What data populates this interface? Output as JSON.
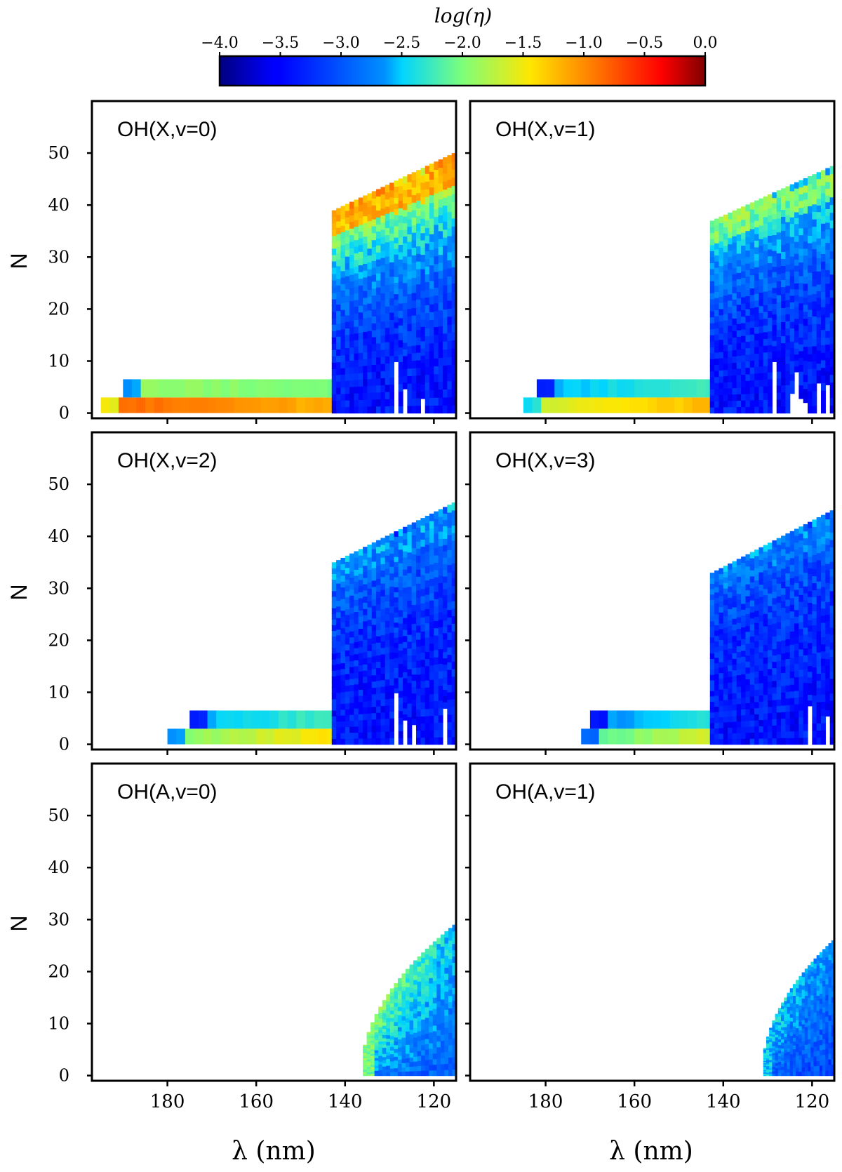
{
  "chart_data": {
    "type": "heatmap",
    "colorbar": {
      "label": "log(η)",
      "colormap": "jet",
      "range": [
        -4.0,
        0.0
      ],
      "ticks": [
        -4.0,
        -3.5,
        -3.0,
        -2.5,
        -2.0,
        -1.5,
        -1.0,
        -0.5,
        0.0
      ],
      "tick_labels": [
        "−4.0",
        "−3.5",
        "−3.0",
        "−2.5",
        "−2.0",
        "−1.5",
        "−1.0",
        "−0.5",
        "0.0"
      ]
    },
    "x_axis": {
      "label": "λ (nm)",
      "range": [
        197,
        115
      ],
      "ticks": [
        180,
        160,
        140,
        120
      ],
      "tick_labels": [
        "180",
        "160",
        "140",
        "120"
      ]
    },
    "y_axis": {
      "label": "N",
      "range": [
        -1,
        60
      ],
      "ticks": [
        0,
        10,
        20,
        30,
        40,
        50
      ],
      "tick_labels": [
        "0",
        "10",
        "20",
        "30",
        "40",
        "50"
      ]
    },
    "panels": [
      {
        "title": "OH(X,v=0)",
        "bands": [
          {
            "x_start": 195,
            "x_end": 143,
            "n_min": 0,
            "n_max": 3,
            "log_eta_start": -0.8,
            "log_eta_end": -1.2
          },
          {
            "x_start": 190,
            "x_end": 143,
            "n_min": 3,
            "n_max": 6.5,
            "log_eta_start": -1.9,
            "log_eta_end": -2.0
          }
        ],
        "region": {
          "x_start": 143,
          "x_end": 115,
          "edge_n_start": 39,
          "edge_n_end": 50,
          "peak_log_eta": -1.1,
          "base_log_eta": -3.4
        }
      },
      {
        "title": "OH(X,v=1)",
        "bands": [
          {
            "x_start": 185,
            "x_end": 143,
            "n_min": 0,
            "n_max": 3,
            "log_eta_start": -1.7,
            "log_eta_end": -1.2
          },
          {
            "x_start": 182,
            "x_end": 143,
            "n_min": 3,
            "n_max": 6.5,
            "log_eta_start": -2.6,
            "log_eta_end": -2.2
          }
        ],
        "region": {
          "x_start": 143,
          "x_end": 115,
          "edge_n_start": 37,
          "edge_n_end": 47.5,
          "peak_log_eta": -1.9,
          "base_log_eta": -3.4
        }
      },
      {
        "title": "OH(X,v=2)",
        "bands": [
          {
            "x_start": 180,
            "x_end": 143,
            "n_min": 0,
            "n_max": 3,
            "log_eta_start": -2.0,
            "log_eta_end": -1.4
          },
          {
            "x_start": 175,
            "x_end": 143,
            "n_min": 3,
            "n_max": 6.5,
            "log_eta_start": -2.6,
            "log_eta_end": -2.2
          }
        ],
        "region": {
          "x_start": 143,
          "x_end": 115,
          "edge_n_start": 35,
          "edge_n_end": 46.5,
          "peak_log_eta": -2.6,
          "base_log_eta": -3.4
        }
      },
      {
        "title": "OH(X,v=3)",
        "bands": [
          {
            "x_start": 172,
            "x_end": 143,
            "n_min": 0,
            "n_max": 3,
            "log_eta_start": -2.2,
            "log_eta_end": -1.6
          },
          {
            "x_start": 170,
            "x_end": 143,
            "n_min": 3,
            "n_max": 6.5,
            "log_eta_start": -2.7,
            "log_eta_end": -2.3
          }
        ],
        "region": {
          "x_start": 143,
          "x_end": 115,
          "edge_n_start": 33,
          "edge_n_end": 45,
          "peak_log_eta": -2.7,
          "base_log_eta": -3.4
        }
      },
      {
        "title": "OH(A,v=0)",
        "bands": [],
        "curve": {
          "x_zero": 136,
          "x_end": 115,
          "n_end": 29,
          "peak_log_eta": -1.8,
          "base_log_eta": -3.3
        }
      },
      {
        "title": "OH(A,v=1)",
        "bands": [],
        "curve": {
          "x_zero": 131,
          "x_end": 115,
          "n_end": 26,
          "peak_log_eta": -2.3,
          "base_log_eta": -3.3
        }
      }
    ]
  }
}
